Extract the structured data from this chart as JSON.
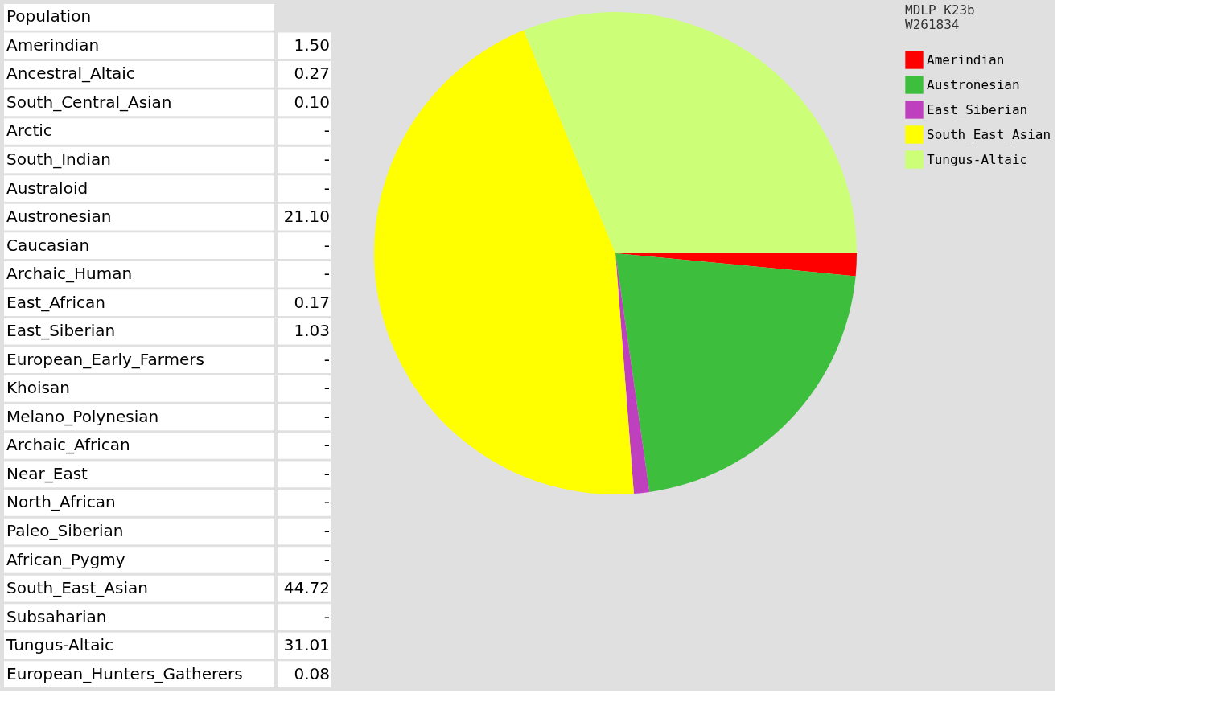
{
  "chart_data": [
    {
      "type": "other",
      "title": "Population",
      "categories": [
        "Amerindian",
        "Ancestral_Altaic",
        "South_Central_Asian",
        "Arctic",
        "South_Indian",
        "Australoid",
        "Austronesian",
        "Caucasian",
        "Archaic_Human",
        "East_African",
        "East_Siberian",
        "European_Early_Farmers",
        "Khoisan",
        "Melano_Polynesian",
        "Archaic_African",
        "Near_East",
        "North_African",
        "Paleo_Siberian",
        "African_Pygmy",
        "South_East_Asian",
        "Subsaharian",
        "Tungus-Altaic",
        "European_Hunters_Gatherers"
      ],
      "value_labels": [
        "1.50",
        "0.27",
        "0.10",
        "-",
        "-",
        "-",
        "21.10",
        "-",
        "-",
        "0.17",
        "1.03",
        "-",
        "-",
        "-",
        "-",
        "-",
        "-",
        "-",
        "-",
        "44.72",
        "-",
        "31.01",
        "0.08"
      ]
    },
    {
      "type": "pie",
      "title": "MDLP K23b",
      "subtitle": "W261834",
      "categories": [
        "Amerindian",
        "Austronesian",
        "East_Siberian",
        "South_East_Asian",
        "Tungus-Altaic"
      ],
      "values": [
        1.5,
        21.1,
        1.03,
        44.72,
        31.01
      ],
      "colors": [
        "#ff0000",
        "#3dbf3d",
        "#bf40bf",
        "#ffff00",
        "#ccff77"
      ],
      "legend": "right"
    }
  ]
}
